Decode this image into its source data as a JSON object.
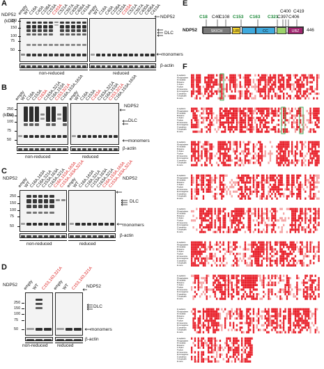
{
  "panels": {
    "A": {
      "letter": "A",
      "protein_label": "NDP52",
      "kda_label": "(kDa)",
      "markers": [
        "250",
        "150",
        "100",
        "75",
        "50"
      ],
      "lanes": [
        "empty",
        "WT",
        "C18A",
        "C40A",
        "C108A",
        "C153A",
        "C163A",
        "C321A",
        "C397A",
        "C400A",
        "C406A",
        "C419A"
      ],
      "red_lanes": [
        6
      ],
      "right_labels": [
        "NDP52",
        "DLC",
        "monomers",
        "β-actin"
      ],
      "conditions": [
        "non-reduced",
        "reduced"
      ]
    },
    "B": {
      "letter": "B",
      "protein_label": "NDP52",
      "kda_label": "(kDa)",
      "markers": [
        "250",
        "150",
        "100",
        "75",
        "50"
      ],
      "lanes": [
        "empty",
        "WT",
        "C18A",
        "C153A",
        "C163A",
        "C163A,321A",
        "C18A,153A",
        "C153,321A",
        "C18A,153A,163A"
      ],
      "red_lanes": [
        4,
        7
      ],
      "right_labels": [
        "NDP52",
        "DLC",
        "monomers",
        "β-actin"
      ],
      "conditions": [
        "non-reduced",
        "reduced"
      ]
    },
    "C": {
      "letter": "C",
      "protein_label": "NDP52",
      "markers": [
        "250",
        "150",
        "100",
        "75",
        "50"
      ],
      "lanes": [
        "empty",
        "WT",
        "C18A,163A",
        "C18A,321A",
        "C153A,163A",
        "C163A,321A",
        "C18A,153A,163A",
        "C153A,163A,321A"
      ],
      "red_lanes": [
        6,
        7
      ],
      "right_labels": [
        "NDP52",
        "DLC",
        "monomers",
        "β-actin"
      ],
      "conditions": [
        "non-reduced",
        "reduced"
      ]
    },
    "D": {
      "letter": "D",
      "protein_label": "NDP52",
      "markers": [
        "250",
        "150",
        "100",
        "75",
        "50"
      ],
      "lanes": [
        "empty",
        "WT",
        "C153,163,321A"
      ],
      "red_lanes": [
        2
      ],
      "right_labels": [
        "NDP52",
        "DLC",
        "monomers",
        "β-actin"
      ],
      "conditions": [
        "non-reduced",
        "reduced"
      ]
    },
    "E": {
      "letter": "E",
      "protein_label": "NDP52",
      "end_number": "446",
      "cys_top": [
        "C400",
        "C419"
      ],
      "cys_mid": [
        {
          "label": "C18",
          "color": "green"
        },
        {
          "label": "C40",
          "color": "black"
        },
        {
          "label": "C108",
          "color": "black"
        },
        {
          "label": "C153",
          "color": "green"
        },
        {
          "label": "C163",
          "color": "green"
        },
        {
          "label": "C321",
          "color": "green"
        },
        {
          "label": "C397",
          "color": "black"
        },
        {
          "label": "C406",
          "color": "black"
        }
      ],
      "domains": [
        "SKICH",
        "LIR",
        "CC",
        "UBZ"
      ]
    },
    "F": {
      "letter": "F",
      "species": [
        "H.sapiens",
        "P.troglodytes",
        "M.mulatta",
        "B.taurus",
        "C.lupus",
        "F.catus",
        "M.musculus",
        "R.norvegicus",
        "O.anatinus",
        "X.tropicalis",
        "D.rerio"
      ]
    }
  }
}
